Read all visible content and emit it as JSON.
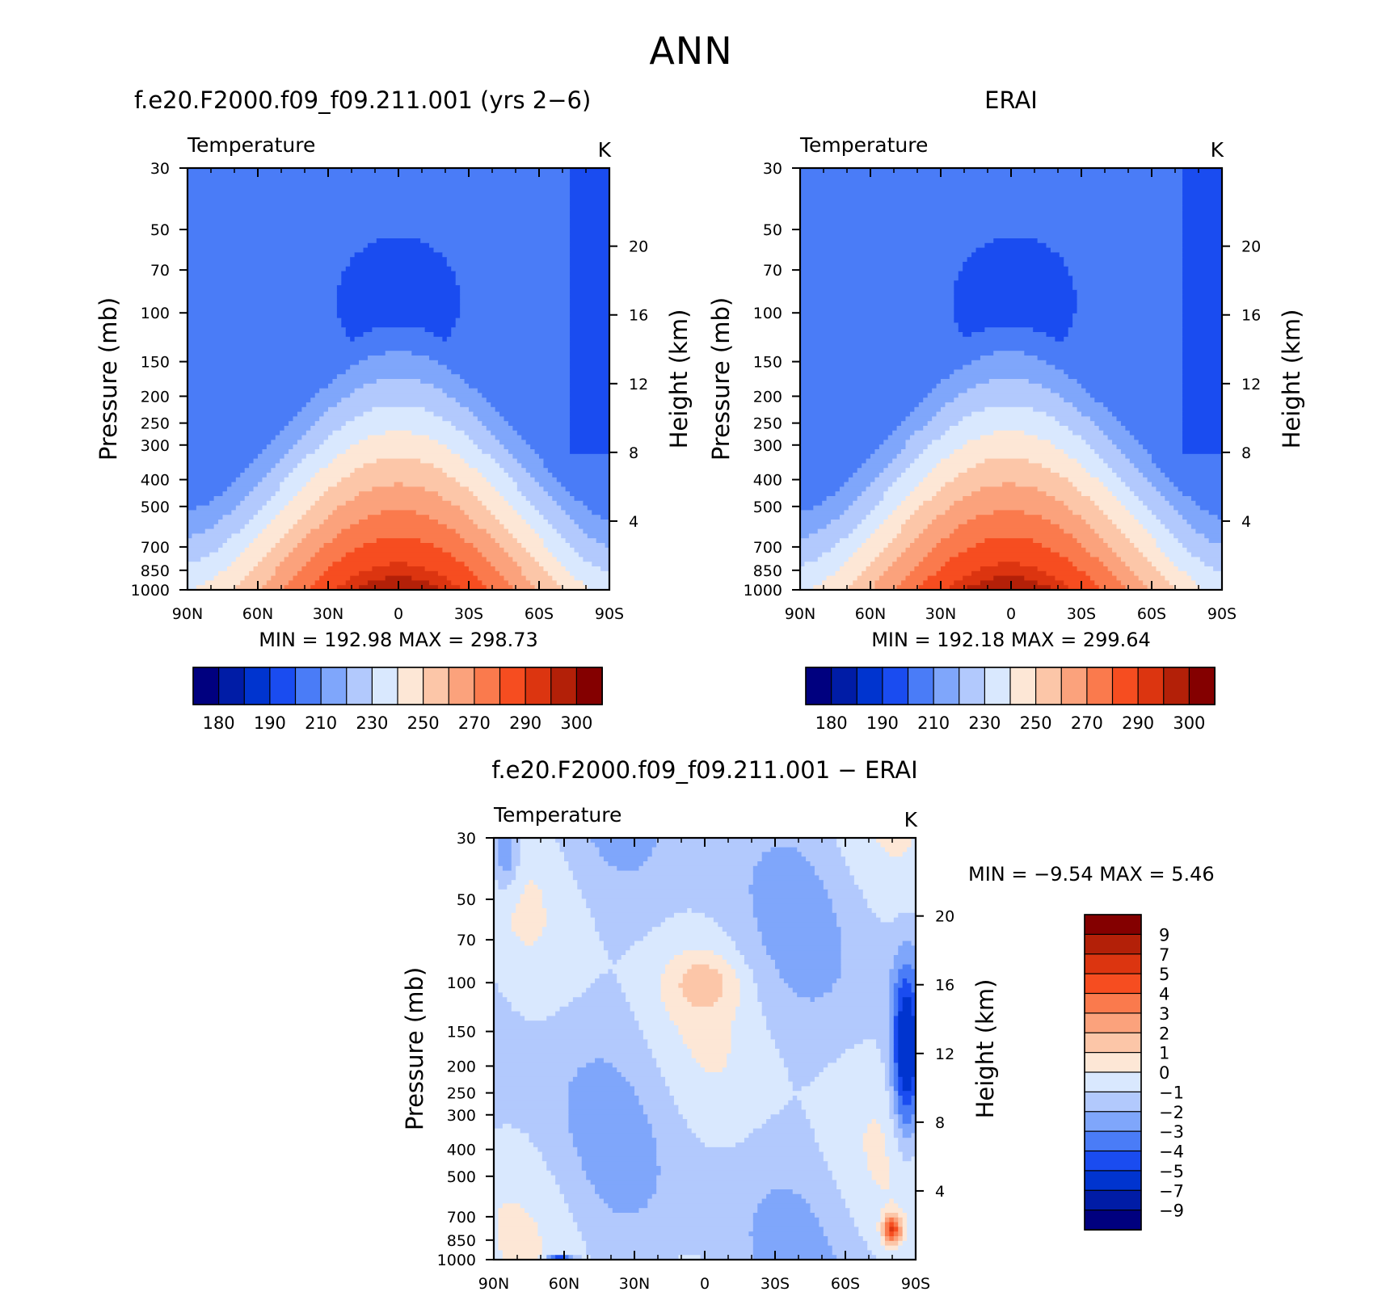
{
  "figure_title": "ANN",
  "chart_data": [
    {
      "type": "heatmap",
      "title": "f.e20.F2000.f09_f09.211.001 (yrs 2−6)",
      "subtitle": "Temperature",
      "units": "K",
      "xlabel": "",
      "ylabel": "Pressure (mb)",
      "y2label": "Height (km)",
      "x_ticks": [
        "90N",
        "60N",
        "30N",
        "0",
        "30S",
        "60S",
        "90S"
      ],
      "y_ticks": [
        30,
        50,
        70,
        100,
        150,
        200,
        250,
        300,
        400,
        500,
        700,
        850,
        1000
      ],
      "y2_ticks": [
        4,
        8,
        12,
        16,
        20
      ],
      "y_scale": "log",
      "ylim": [
        1000,
        30
      ],
      "xlim": [
        "90N",
        "90S"
      ],
      "min_label": "MIN =  192.98   MAX =  298.73",
      "levels": [
        180,
        185,
        190,
        200,
        210,
        220,
        230,
        240,
        250,
        260,
        270,
        280,
        290,
        295,
        300
      ],
      "colorbar_labels": [
        "180",
        "190",
        "210",
        "230",
        "250",
        "270",
        "290",
        "300"
      ]
    },
    {
      "type": "heatmap",
      "title": "ERAI",
      "subtitle": "Temperature",
      "units": "K",
      "xlabel": "",
      "ylabel": "Pressure (mb)",
      "y2label": "Height (km)",
      "x_ticks": [
        "90N",
        "60N",
        "30N",
        "0",
        "30S",
        "60S",
        "90S"
      ],
      "y_ticks": [
        30,
        50,
        70,
        100,
        150,
        200,
        250,
        300,
        400,
        500,
        700,
        850,
        1000
      ],
      "y2_ticks": [
        4,
        8,
        12,
        16,
        20
      ],
      "y_scale": "log",
      "ylim": [
        1000,
        30
      ],
      "min_label": "MIN =  192.18   MAX =  299.64",
      "levels": [
        180,
        185,
        190,
        200,
        210,
        220,
        230,
        240,
        250,
        260,
        270,
        280,
        290,
        295,
        300
      ],
      "colorbar_labels": [
        "180",
        "190",
        "210",
        "230",
        "250",
        "270",
        "290",
        "300"
      ]
    },
    {
      "type": "heatmap",
      "title": "f.e20.F2000.f09_f09.211.001 − ERAI",
      "subtitle": "Temperature",
      "units": "K",
      "xlabel": "",
      "ylabel": "Pressure (mb)",
      "y2label": "Height (km)",
      "x_ticks": [
        "90N",
        "60N",
        "30N",
        "0",
        "30S",
        "60S",
        "90S"
      ],
      "y_ticks": [
        30,
        50,
        70,
        100,
        150,
        200,
        250,
        300,
        400,
        500,
        700,
        850,
        1000
      ],
      "y2_ticks": [
        4,
        8,
        12,
        16,
        20
      ],
      "y_scale": "log",
      "ylim": [
        1000,
        30
      ],
      "min_label": "MIN =    −9.54    MAX =     5.46",
      "levels": [
        -9,
        -7,
        -5,
        -4,
        -3,
        -2,
        -1,
        0,
        1,
        2,
        3,
        4,
        5,
        7,
        9
      ],
      "colorbar_labels": [
        "9",
        "7",
        "5",
        "4",
        "3",
        "2",
        "1",
        "0",
        "−1",
        "−2",
        "−3",
        "−4",
        "−5",
        "−7",
        "−9"
      ]
    }
  ],
  "colors": {
    "palette": [
      "#00007f",
      "#001ca6",
      "#0034cf",
      "#1a4cf0",
      "#4a7cf7",
      "#7fa6fb",
      "#b2c9fd",
      "#d9e8fe",
      "#fde7d6",
      "#fcc6a8",
      "#fba27c",
      "#fa7a4d",
      "#f64d20",
      "#dc3510",
      "#b32008",
      "#840000"
    ]
  }
}
